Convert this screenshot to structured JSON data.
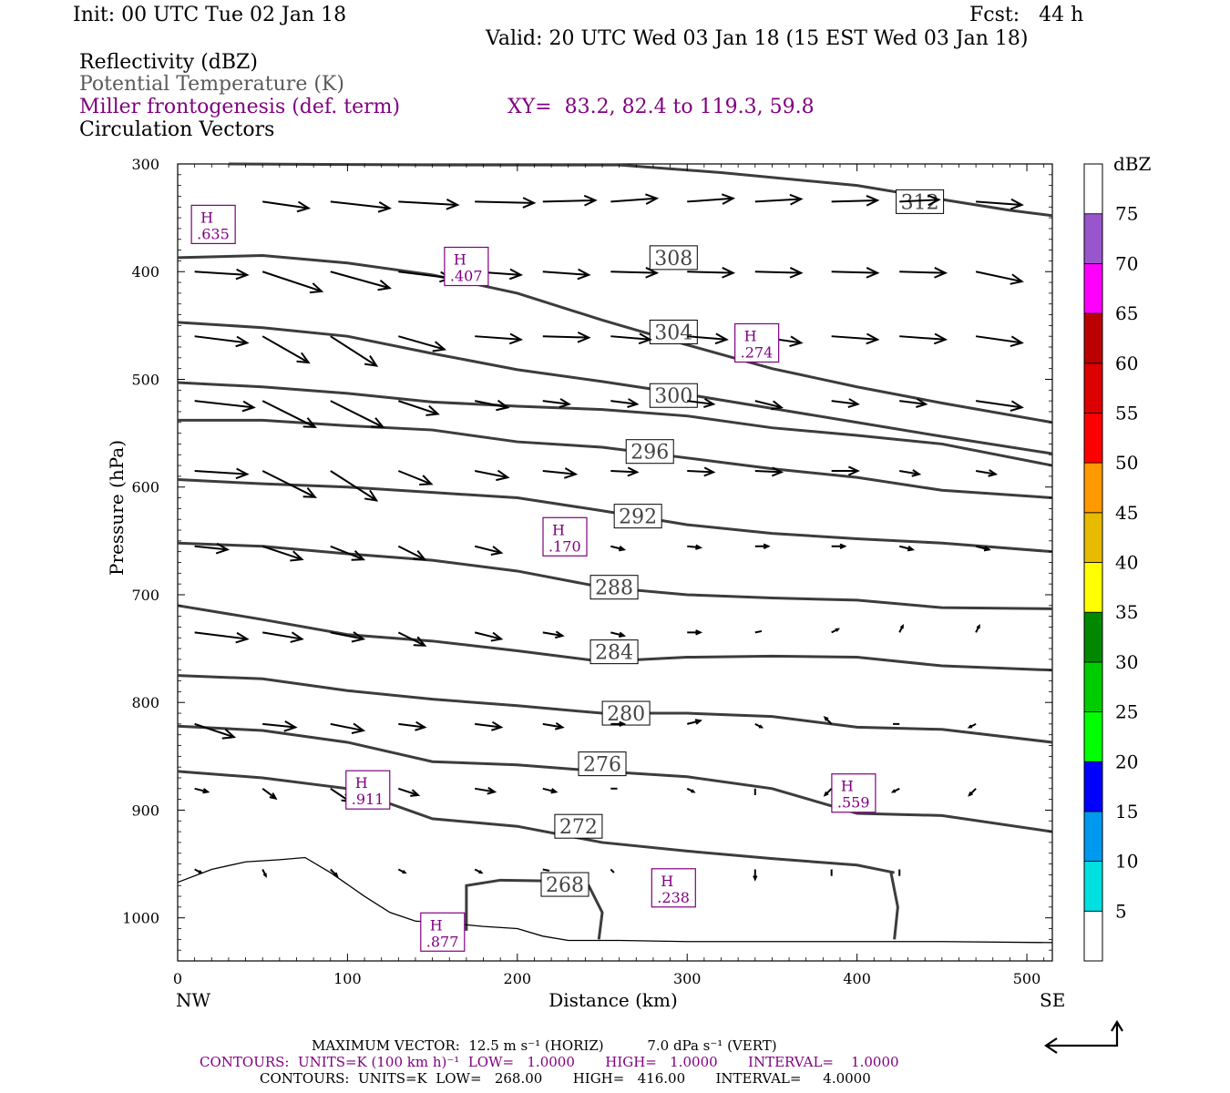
{
  "header": {
    "init": "Init: 00 UTC Tue 02 Jan 18",
    "fcst": "Fcst:   44 h",
    "valid": "Valid: 20 UTC Wed 03 Jan 18 (15 EST Wed 03 Jan 18)",
    "fields": [
      "Reflectivity (dBZ)",
      "Potential Temperature (K)",
      "Miller frontogenesis (def. term)",
      "Circulation Vectors"
    ],
    "xy": "XY=  83.2, 82.4 to 119.3, 59.8"
  },
  "colors": {
    "purple": "#800080",
    "contour": "#3c3c3c",
    "gray_text": "#5a5a5a"
  },
  "chart_data": {
    "type": "cross-section",
    "xlabel": "Distance (km)",
    "ylabel": "Pressure (hPa)",
    "xlim": [
      0,
      515
    ],
    "ylim": [
      300,
      1040
    ],
    "y_reversed": true,
    "x_ticks": [
      0,
      100,
      200,
      300,
      400,
      500
    ],
    "x_tick_labels": [
      "0",
      "100",
      "200",
      "300",
      "400",
      "500"
    ],
    "y_ticks": [
      300,
      400,
      500,
      600,
      700,
      800,
      900,
      1000
    ],
    "y_tick_labels": [
      "300",
      "400",
      "500",
      "600",
      "700",
      "800",
      "900",
      "1000"
    ],
    "end_labels": {
      "left": "NW",
      "right": "SE"
    },
    "theta_contours": [
      {
        "label": "312",
        "label_at": [
          437,
          335
        ],
        "points": [
          [
            30,
            300
          ],
          [
            160,
            301
          ],
          [
            260,
            301
          ],
          [
            320,
            308
          ],
          [
            400,
            320
          ],
          [
            450,
            333
          ],
          [
            490,
            343
          ],
          [
            515,
            348
          ]
        ]
      },
      {
        "label": "308",
        "label_at": [
          292,
          387
        ],
        "points": [
          [
            0,
            387
          ],
          [
            50,
            385
          ],
          [
            100,
            392
          ],
          [
            150,
            403
          ],
          [
            200,
            420
          ],
          [
            250,
            445
          ],
          [
            300,
            468
          ],
          [
            350,
            490
          ],
          [
            400,
            507
          ],
          [
            450,
            522
          ],
          [
            515,
            540
          ]
        ]
      },
      {
        "label": "304",
        "label_at": [
          292,
          456
        ],
        "points": [
          [
            0,
            447
          ],
          [
            50,
            452
          ],
          [
            100,
            460
          ],
          [
            150,
            476
          ],
          [
            200,
            491
          ],
          [
            250,
            502
          ],
          [
            300,
            514
          ],
          [
            350,
            527
          ],
          [
            400,
            540
          ],
          [
            450,
            553
          ],
          [
            515,
            569
          ]
        ]
      },
      {
        "label": "300",
        "label_at": [
          292,
          515
        ],
        "points": [
          [
            0,
            503
          ],
          [
            50,
            507
          ],
          [
            100,
            513
          ],
          [
            150,
            521
          ],
          [
            200,
            525
          ],
          [
            250,
            528
          ],
          [
            300,
            534
          ],
          [
            350,
            545
          ],
          [
            400,
            552
          ],
          [
            450,
            560
          ],
          [
            515,
            580
          ]
        ]
      },
      {
        "label": "296",
        "label_at": [
          278,
          567
        ],
        "points": [
          [
            0,
            538
          ],
          [
            50,
            538
          ],
          [
            100,
            543
          ],
          [
            150,
            547
          ],
          [
            200,
            558
          ],
          [
            250,
            563
          ],
          [
            300,
            573
          ],
          [
            350,
            583
          ],
          [
            400,
            591
          ],
          [
            450,
            603
          ],
          [
            515,
            610
          ]
        ]
      },
      {
        "label": "292",
        "label_at": [
          271,
          627
        ],
        "points": [
          [
            0,
            593
          ],
          [
            50,
            597
          ],
          [
            100,
            600
          ],
          [
            150,
            605
          ],
          [
            200,
            610
          ],
          [
            250,
            622
          ],
          [
            300,
            635
          ],
          [
            350,
            643
          ],
          [
            400,
            648
          ],
          [
            450,
            652
          ],
          [
            515,
            660
          ]
        ]
      },
      {
        "label": "288",
        "label_at": [
          257,
          693
        ],
        "points": [
          [
            0,
            652
          ],
          [
            50,
            655
          ],
          [
            100,
            662
          ],
          [
            150,
            668
          ],
          [
            200,
            678
          ],
          [
            250,
            693
          ],
          [
            300,
            700
          ],
          [
            350,
            703
          ],
          [
            400,
            705
          ],
          [
            450,
            712
          ],
          [
            515,
            713
          ]
        ]
      },
      {
        "label": "284",
        "label_at": [
          257,
          753
        ],
        "points": [
          [
            0,
            710
          ],
          [
            50,
            723
          ],
          [
            100,
            737
          ],
          [
            150,
            743
          ],
          [
            200,
            752
          ],
          [
            250,
            762
          ],
          [
            300,
            758
          ],
          [
            350,
            757
          ],
          [
            400,
            758
          ],
          [
            450,
            766
          ],
          [
            515,
            770
          ]
        ]
      },
      {
        "label": "280",
        "label_at": [
          264,
          810
        ],
        "points": [
          [
            0,
            775
          ],
          [
            50,
            778
          ],
          [
            100,
            789
          ],
          [
            150,
            797
          ],
          [
            200,
            803
          ],
          [
            250,
            810
          ],
          [
            300,
            810
          ],
          [
            350,
            813
          ],
          [
            400,
            823
          ],
          [
            450,
            825
          ],
          [
            515,
            837
          ]
        ]
      },
      {
        "label": "276",
        "label_at": [
          250,
          857
        ],
        "points": [
          [
            0,
            822
          ],
          [
            50,
            826
          ],
          [
            100,
            837
          ],
          [
            150,
            855
          ],
          [
            200,
            858
          ],
          [
            250,
            864
          ],
          [
            300,
            869
          ],
          [
            350,
            880
          ],
          [
            400,
            903
          ],
          [
            450,
            905
          ],
          [
            515,
            920
          ]
        ]
      },
      {
        "label": "272",
        "label_at": [
          236,
          915
        ],
        "points": [
          [
            0,
            864
          ],
          [
            50,
            870
          ],
          [
            100,
            880
          ],
          [
            150,
            908
          ],
          [
            200,
            915
          ],
          [
            250,
            930
          ],
          [
            300,
            938
          ],
          [
            350,
            945
          ],
          [
            400,
            951
          ],
          [
            422,
            958
          ]
        ]
      },
      {
        "label": "268",
        "label_at": [
          228,
          969
        ],
        "points": [
          [
            170,
            1012
          ],
          [
            170,
            970
          ],
          [
            190,
            965
          ],
          [
            230,
            966
          ],
          [
            242,
            970
          ],
          [
            250,
            995
          ],
          [
            248,
            1020
          ]
        ]
      }
    ],
    "secondary_closed_contour": [
      [
        422,
        1020
      ],
      [
        424,
        990
      ],
      [
        420,
        958
      ]
    ],
    "terrain_line": [
      [
        0,
        967
      ],
      [
        20,
        955
      ],
      [
        40,
        948
      ],
      [
        60,
        946
      ],
      [
        75,
        944
      ],
      [
        90,
        958
      ],
      [
        110,
        980
      ],
      [
        125,
        995
      ],
      [
        140,
        1003
      ],
      [
        160,
        1005
      ],
      [
        180,
        1008
      ],
      [
        200,
        1010
      ],
      [
        215,
        1017
      ],
      [
        230,
        1021
      ],
      [
        260,
        1021
      ],
      [
        300,
        1022
      ],
      [
        350,
        1022
      ],
      [
        400,
        1022
      ],
      [
        450,
        1022
      ],
      [
        515,
        1023
      ]
    ],
    "highs": [
      {
        "label": "H",
        "value": ".635",
        "at": [
          21,
          357
        ]
      },
      {
        "label": "H",
        "value": ".407",
        "at": [
          170,
          396
        ]
      },
      {
        "label": "H",
        "value": ".274",
        "at": [
          341,
          467
        ]
      },
      {
        "label": "H",
        "value": ".170",
        "at": [
          228,
          647
        ]
      },
      {
        "label": "H",
        "value": ".911",
        "at": [
          112,
          882
        ]
      },
      {
        "label": "H",
        "value": ".559",
        "at": [
          398,
          885
        ]
      },
      {
        "label": "H",
        "value": ".877",
        "at": [
          156,
          1014
        ]
      },
      {
        "label": "H",
        "value": ".238",
        "at": [
          292,
          973
        ]
      }
    ],
    "vectors": {
      "max_horiz_m_s": 12.5,
      "max_vert_dPa_s": 7.0,
      "rows": [
        {
          "p": 335,
          "u": [
            0,
            0.7,
            0.9,
            0.9,
            0.9,
            0.8,
            0.7,
            0.7,
            0.7,
            0.7,
            0.6,
            0.7
          ],
          "w": [
            0,
            0.1,
            0.1,
            0.05,
            0.02,
            -0.02,
            -0.05,
            -0.05,
            -0.04,
            -0.02,
            -0.03,
            0.05
          ],
          "x0": 0
        },
        {
          "p": 400,
          "u": [
            0.8,
            0.9,
            0.9,
            0.8,
            0.7,
            0.7,
            0.7,
            0.7,
            0.7,
            0.7,
            0.7,
            0.7
          ],
          "w": [
            0.05,
            0.3,
            0.25,
            0.1,
            0.05,
            0.05,
            0.02,
            0.02,
            0.02,
            0.02,
            0.02,
            0.15
          ]
        },
        {
          "p": 460,
          "u": [
            0.8,
            0.7,
            0.7,
            0.7,
            0.7,
            0.7,
            0.6,
            0.6,
            0.7,
            0.7,
            0.7,
            0.7
          ],
          "w": [
            0.1,
            0.4,
            0.45,
            0.2,
            0.05,
            0.02,
            0.05,
            0.05,
            0.1,
            0.05,
            0.05,
            0.1
          ]
        },
        {
          "p": 520,
          "u": [
            0.9,
            0.8,
            0.8,
            0.6,
            0.5,
            0.4,
            0.4,
            0.4,
            0.4,
            0.4,
            0.4,
            0.7
          ],
          "w": [
            0.1,
            0.4,
            0.4,
            0.2,
            0.1,
            0.05,
            0.05,
            0.05,
            0.1,
            0.05,
            0.05,
            0.1
          ]
        },
        {
          "p": 585,
          "u": [
            0.8,
            0.8,
            0.7,
            0.5,
            0.5,
            0.5,
            0.4,
            0.4,
            0.4,
            0.4,
            0.3,
            0.3
          ],
          "w": [
            0.05,
            0.4,
            0.45,
            0.2,
            0.1,
            0.05,
            0.02,
            0.02,
            0.02,
            0.0,
            0.05,
            0.05
          ]
        },
        {
          "p": 655,
          "u": [
            0.5,
            0.6,
            0.5,
            0.4,
            0.4,
            0.3,
            0.2,
            0.2,
            0.2,
            0.2,
            0.2,
            0.2
          ],
          "w": [
            0.05,
            0.2,
            0.2,
            0.2,
            0.1,
            0.05,
            0.05,
            0.02,
            0.0,
            0.0,
            0.05,
            0.05
          ]
        },
        {
          "p": 735,
          "u": [
            0.8,
            0.6,
            0.5,
            0.4,
            0.4,
            0.3,
            0.2,
            0.2,
            0.1,
            0.1,
            0.05,
            0.05
          ],
          "w": [
            0.1,
            0.1,
            0.1,
            0.2,
            0.1,
            0.05,
            0.05,
            0.0,
            -0.02,
            -0.05,
            -0.1,
            -0.1
          ]
        },
        {
          "p": 820,
          "u": [
            0.6,
            0.5,
            0.5,
            0.4,
            0.4,
            0.3,
            0.2,
            0.2,
            0.1,
            -0.1,
            -0.1,
            -0.1
          ],
          "w": [
            0.2,
            0.05,
            0.1,
            0.05,
            0.05,
            0.05,
            0.0,
            -0.05,
            0.05,
            -0.1,
            0.0,
            0.05
          ]
        },
        {
          "p": 880,
          "u": [
            0.2,
            0.2,
            0.3,
            0.3,
            0.3,
            0.2,
            0.1,
            0.1,
            0.0,
            -0.1,
            -0.1,
            -0.1
          ],
          "w": [
            0.05,
            0.15,
            0.2,
            0.1,
            0.05,
            0.05,
            0.0,
            0.05,
            0.1,
            0.1,
            0.05,
            0.1
          ]
        },
        {
          "p": 955,
          "u": [
            0.1,
            0.05,
            0.1,
            0.1,
            0.1,
            0.1,
            0.05,
            0.0,
            0.0,
            0.0,
            0.0,
            0.0
          ],
          "w": [
            0.05,
            0.1,
            0.1,
            0.05,
            0.05,
            0.02,
            0.05,
            0.1,
            0.15,
            0.1,
            0.1,
            0.0
          ]
        }
      ]
    }
  },
  "colorbar": {
    "unit": "dBZ",
    "levels": [
      "5",
      "10",
      "15",
      "20",
      "25",
      "30",
      "35",
      "40",
      "45",
      "50",
      "55",
      "60",
      "65",
      "70",
      "75"
    ],
    "colors": [
      "#ffffff",
      "#00e0e0",
      "#0099f0",
      "#0000ff",
      "#00ff00",
      "#00cc00",
      "#008800",
      "#ffff00",
      "#e6bb00",
      "#ff9900",
      "#ff0000",
      "#dd0000",
      "#bb0000",
      "#ff00ff",
      "#9955cc",
      "#ffffff"
    ]
  },
  "footer": {
    "line1": "MAXIMUM VECTOR:  12.5 m s⁻¹ (HORIZ)          7.0 dPa s⁻¹ (VERT)",
    "line2": "CONTOURS:  UNITS=K (100 km h)⁻¹  LOW=   1.0000       HIGH=   1.0000       INTERVAL=    1.0000",
    "line3": "CONTOURS:  UNITS=K  LOW=   268.00       HIGH=   416.00       INTERVAL=     4.0000"
  }
}
